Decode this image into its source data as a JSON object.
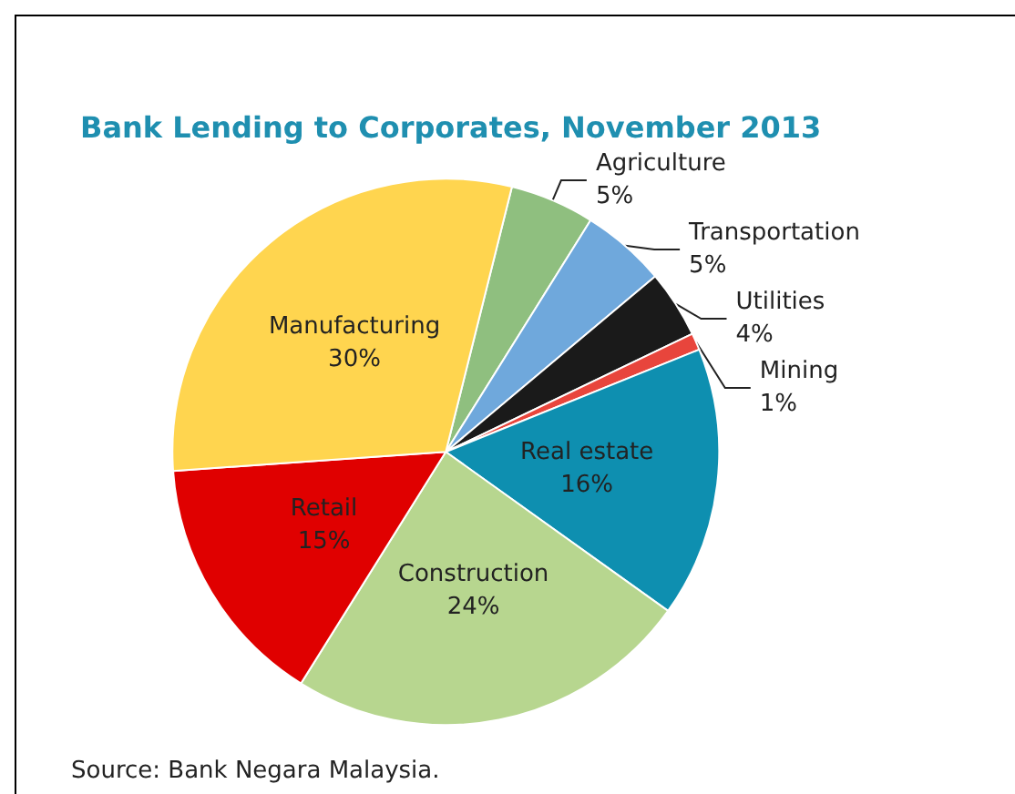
{
  "chart_data": {
    "type": "pie",
    "title": "Bank Lending to Corporates, November 2013",
    "categories": [
      "Agriculture",
      "Transportation",
      "Utilities",
      "Mining",
      "Real estate",
      "Construction",
      "Retail",
      "Manufacturing"
    ],
    "values": [
      5,
      5,
      4,
      1,
      16,
      24,
      15,
      30
    ],
    "value_labels": [
      "5%",
      "5%",
      "4%",
      "1%",
      "16%",
      "24%",
      "15%",
      "30%"
    ],
    "colors": [
      "#8fbf7f",
      "#6fa8dc",
      "#1a1a1a",
      "#e8453c",
      "#0e8fb0",
      "#b7d68f",
      "#e00000",
      "#ffd54f"
    ],
    "legend": false,
    "annotations": [
      "Source: Bank Negara Malaysia."
    ]
  }
}
